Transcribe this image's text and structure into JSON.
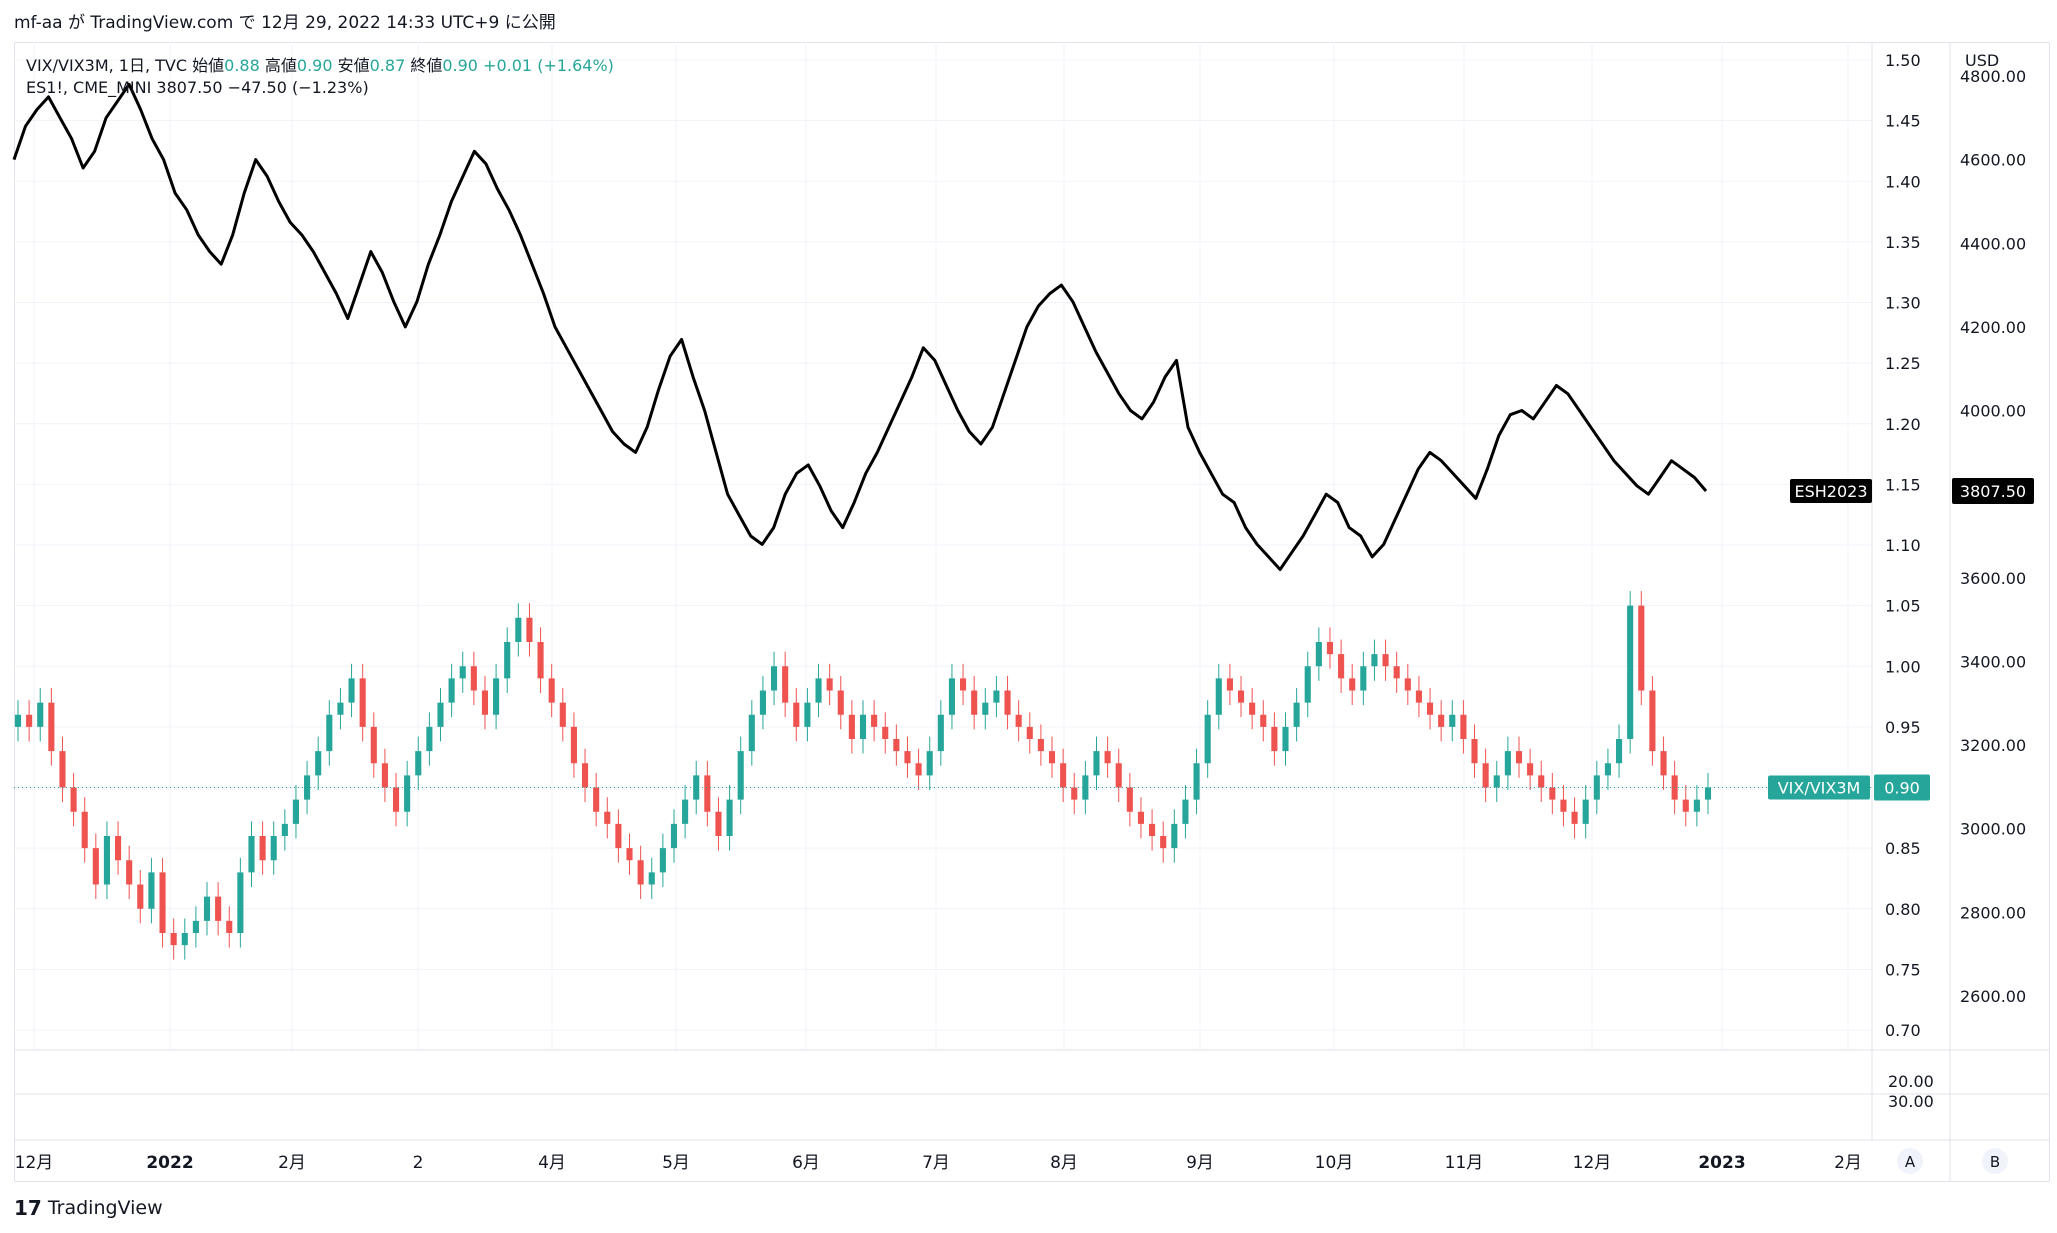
{
  "header": {
    "text": "mf-aa が TradingView.com で 12月 29, 2022 14:33 UTC+9 に公開"
  },
  "legend1": {
    "symbol": "VIX/VIX3M, 1日, TVC",
    "open_label": "始値",
    "open": "0.88",
    "high_label": "高値",
    "high": "0.90",
    "low_label": "安値",
    "low": "0.87",
    "close_label": "終値",
    "close": "0.90",
    "change": "+0.01 (+1.64%)"
  },
  "legend2": {
    "text": "ES1!, CME_MINI  3807.50  −47.50 (−1.23%)"
  },
  "footer": {
    "brand": "TradingView",
    "logo": "17"
  },
  "colors": {
    "up": "#26a69a",
    "down": "#ef5350",
    "line": "#000000",
    "grid": "#f0f3fa"
  },
  "chart_data": {
    "type": "candlestick+line",
    "x_ticks": [
      "12月",
      "2022",
      "2月",
      "2",
      "4月",
      "5月",
      "6月",
      "7月",
      "8月",
      "9月",
      "10月",
      "11月",
      "12月",
      "2023",
      "2月"
    ],
    "left_axis": {
      "ticks": [
        "1.50",
        "1.45",
        "1.40",
        "1.35",
        "1.30",
        "1.25",
        "1.20",
        "1.15",
        "1.10",
        "1.05",
        "1.00",
        "0.95",
        "0.90",
        "0.85",
        "0.80",
        "0.75",
        "0.70"
      ],
      "ylim": [
        0.68,
        1.52
      ]
    },
    "right_axis": {
      "unit": "USD",
      "ticks": [
        "4800.00",
        "4600.00",
        "4400.00",
        "4200.00",
        "4000.00",
        "3800.00",
        "3600.00",
        "3400.00",
        "3200.00",
        "3000.00",
        "2800.00",
        "2600.00"
      ]
    },
    "sub_axis_ticks": [
      "20.00",
      "30.00"
    ],
    "series": [
      {
        "name": "VIX/VIX3M",
        "axis": "left",
        "last_value": "0.90",
        "closes": [
          0.96,
          0.95,
          0.97,
          0.93,
          0.9,
          0.88,
          0.85,
          0.82,
          0.86,
          0.84,
          0.82,
          0.8,
          0.83,
          0.78,
          0.77,
          0.78,
          0.79,
          0.81,
          0.79,
          0.78,
          0.83,
          0.86,
          0.84,
          0.86,
          0.87,
          0.89,
          0.91,
          0.93,
          0.96,
          0.97,
          0.99,
          0.95,
          0.92,
          0.9,
          0.88,
          0.91,
          0.93,
          0.95,
          0.97,
          0.99,
          1.0,
          0.98,
          0.96,
          0.99,
          1.02,
          1.04,
          1.02,
          0.99,
          0.97,
          0.95,
          0.92,
          0.9,
          0.88,
          0.87,
          0.85,
          0.84,
          0.82,
          0.83,
          0.85,
          0.87,
          0.89,
          0.91,
          0.88,
          0.86,
          0.89,
          0.93,
          0.96,
          0.98,
          1.0,
          0.97,
          0.95,
          0.97,
          0.99,
          0.98,
          0.96,
          0.94,
          0.96,
          0.95,
          0.94,
          0.93,
          0.92,
          0.91,
          0.93,
          0.96,
          0.99,
          0.98,
          0.96,
          0.97,
          0.98,
          0.96,
          0.95,
          0.94,
          0.93,
          0.92,
          0.9,
          0.89,
          0.91,
          0.93,
          0.92,
          0.9,
          0.88,
          0.87,
          0.86,
          0.85,
          0.87,
          0.89,
          0.92,
          0.96,
          0.99,
          0.98,
          0.97,
          0.96,
          0.95,
          0.93,
          0.95,
          0.97,
          1.0,
          1.02,
          1.01,
          0.99,
          0.98,
          1.0,
          1.01,
          1.0,
          0.99,
          0.98,
          0.97,
          0.96,
          0.95,
          0.96,
          0.94,
          0.92,
          0.9,
          0.91,
          0.93,
          0.92,
          0.91,
          0.9,
          0.89,
          0.88,
          0.87,
          0.89,
          0.91,
          0.92,
          0.94,
          1.05,
          0.98,
          0.93,
          0.91,
          0.89,
          0.88,
          0.89,
          0.9
        ]
      },
      {
        "name": "ESH2023",
        "axis": "right",
        "last_value": "3807.50",
        "closes": [
          4600,
          4680,
          4720,
          4750,
          4700,
          4650,
          4580,
          4620,
          4700,
          4740,
          4780,
          4720,
          4650,
          4600,
          4520,
          4480,
          4420,
          4380,
          4350,
          4420,
          4520,
          4600,
          4560,
          4500,
          4450,
          4420,
          4380,
          4330,
          4280,
          4220,
          4300,
          4380,
          4330,
          4260,
          4200,
          4260,
          4350,
          4420,
          4500,
          4560,
          4620,
          4590,
          4530,
          4480,
          4420,
          4350,
          4280,
          4200,
          4150,
          4100,
          4050,
          4000,
          3950,
          3920,
          3900,
          3960,
          4050,
          4130,
          4170,
          4080,
          4000,
          3900,
          3800,
          3750,
          3700,
          3680,
          3720,
          3800,
          3850,
          3870,
          3820,
          3760,
          3720,
          3780,
          3850,
          3900,
          3960,
          4020,
          4080,
          4150,
          4120,
          4060,
          4000,
          3950,
          3920,
          3960,
          4040,
          4120,
          4200,
          4250,
          4280,
          4300,
          4260,
          4200,
          4140,
          4090,
          4040,
          4000,
          3980,
          4020,
          4080,
          4120,
          3960,
          3900,
          3850,
          3800,
          3780,
          3720,
          3680,
          3650,
          3620,
          3660,
          3700,
          3750,
          3800,
          3780,
          3720,
          3700,
          3650,
          3680,
          3740,
          3800,
          3860,
          3900,
          3880,
          3850,
          3820,
          3790,
          3860,
          3940,
          3990,
          4000,
          3980,
          4020,
          4060,
          4040,
          4000,
          3960,
          3920,
          3880,
          3850,
          3820,
          3800,
          3840,
          3880,
          3860,
          3840,
          3807.5
        ]
      }
    ],
    "labels": {
      "line_tag": "ESH2023",
      "candle_tag": "VIX/VIX3M"
    },
    "buttons": [
      "A",
      "B"
    ]
  }
}
